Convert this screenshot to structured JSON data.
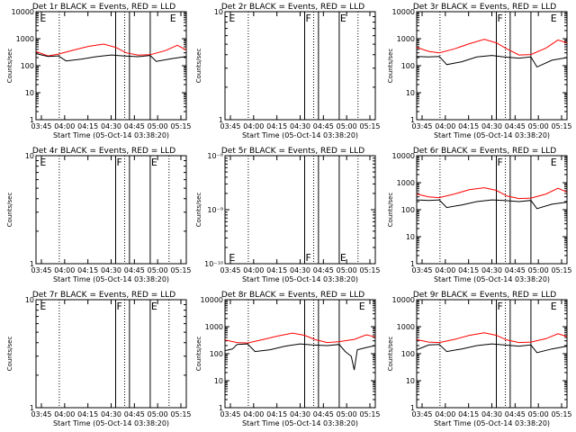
{
  "page": {
    "start_label_prefix": "Start Time",
    "start_time": "(05-Oct-14 03:38:20)",
    "x_ticks": [
      "03:45",
      "04:00",
      "04:15",
      "04:30",
      "04:45",
      "05:00",
      "05:15"
    ],
    "ylabel": "Counts/sec",
    "colors": {
      "events": "#000000",
      "lld": "#ff0000",
      "axes": "#000000"
    }
  },
  "chart_data": [
    {
      "type": "line",
      "title": "Det 1r BLACK = Events, RED = LLD",
      "scale": "log",
      "ylim": [
        1,
        10000
      ],
      "y_ticks": [
        "1",
        "10",
        "100",
        "1000",
        "10000"
      ],
      "markers": [
        {
          "x": 0.02,
          "label": "E"
        },
        {
          "x": 0.885,
          "label": "E"
        }
      ],
      "dotted_x": [
        0.155,
        0.59
      ],
      "solid_x": [
        0.53,
        0.622,
        0.76
      ],
      "has_data": true,
      "series": [
        {
          "color": "red",
          "points": [
            [
              0,
              330
            ],
            [
              0.08,
              230
            ],
            [
              0.15,
              270
            ],
            [
              0.25,
              380
            ],
            [
              0.35,
              520
            ],
            [
              0.45,
              630
            ],
            [
              0.53,
              480
            ],
            [
              0.6,
              300
            ],
            [
              0.68,
              245
            ],
            [
              0.76,
              255
            ],
            [
              0.86,
              360
            ],
            [
              0.94,
              570
            ],
            [
              1,
              380
            ]
          ]
        },
        {
          "color": "black",
          "points": [
            [
              0,
              280
            ],
            [
              0.08,
              220
            ],
            [
              0.15,
              230
            ],
            [
              0.2,
              150
            ],
            [
              0.3,
              175
            ],
            [
              0.4,
              215
            ],
            [
              0.5,
              250
            ],
            [
              0.58,
              230
            ],
            [
              0.68,
              215
            ],
            [
              0.76,
              240
            ],
            [
              0.8,
              145
            ],
            [
              0.9,
              180
            ],
            [
              1,
              220
            ]
          ]
        }
      ]
    },
    {
      "type": "line",
      "title": "Det 2r BLACK = Events, RED = LLD",
      "scale": "log",
      "ylim": [
        1,
        10
      ],
      "y_ticks": [
        "1",
        "10"
      ],
      "markers": [
        {
          "x": 0.02,
          "label": "E"
        },
        {
          "x": 0.53,
          "label": "F"
        },
        {
          "x": 0.76,
          "label": "E"
        }
      ],
      "dotted_x": [
        0.155,
        0.59,
        0.885
      ],
      "solid_x": [
        0.53,
        0.622,
        0.76
      ],
      "has_data": false,
      "series": []
    },
    {
      "type": "line",
      "title": "Det 3r BLACK = Events, RED = LLD",
      "scale": "log",
      "ylim": [
        1,
        10000
      ],
      "y_ticks": [
        "1",
        "10",
        "100",
        "1000",
        "10000"
      ],
      "markers": [
        {
          "x": 0.53,
          "label": "F"
        },
        {
          "x": 0.885,
          "label": "E"
        }
      ],
      "dotted_x": [
        0.155,
        0.59
      ],
      "solid_x": [
        0.53,
        0.622,
        0.76
      ],
      "has_data": true,
      "series": [
        {
          "color": "red",
          "points": [
            [
              0,
              480
            ],
            [
              0.08,
              340
            ],
            [
              0.15,
              300
            ],
            [
              0.25,
              420
            ],
            [
              0.35,
              650
            ],
            [
              0.45,
              950
            ],
            [
              0.53,
              700
            ],
            [
              0.6,
              420
            ],
            [
              0.68,
              250
            ],
            [
              0.76,
              260
            ],
            [
              0.86,
              450
            ],
            [
              0.94,
              900
            ],
            [
              1,
              700
            ]
          ]
        },
        {
          "color": "black",
          "points": [
            [
              0,
              220
            ],
            [
              0.08,
              210
            ],
            [
              0.15,
              220
            ],
            [
              0.2,
              110
            ],
            [
              0.3,
              140
            ],
            [
              0.4,
              210
            ],
            [
              0.5,
              240
            ],
            [
              0.58,
              210
            ],
            [
              0.68,
              190
            ],
            [
              0.76,
              210
            ],
            [
              0.8,
              90
            ],
            [
              0.9,
              160
            ],
            [
              1,
              200
            ]
          ]
        }
      ]
    },
    {
      "type": "line",
      "title": "Det 4r BLACK = Events, RED = LLD",
      "scale": "log",
      "ylim": [
        1,
        10
      ],
      "y_ticks": [
        "1",
        "10"
      ],
      "markers": [
        {
          "x": 0.02,
          "label": "E"
        },
        {
          "x": 0.53,
          "label": "F"
        },
        {
          "x": 0.76,
          "label": "E"
        }
      ],
      "dotted_x": [
        0.155,
        0.59,
        0.885
      ],
      "solid_x": [
        0.53,
        0.622,
        0.76
      ],
      "has_data": false,
      "series": []
    },
    {
      "type": "line",
      "title": "Det 5r BLACK = Events, RED = LLD",
      "scale": "log",
      "ylim": [
        1e-10,
        1e-08
      ],
      "y_ticks": [
        "10⁻¹⁰",
        "10⁻⁹",
        "10⁻⁸"
      ],
      "markers": [
        {
          "x": 0.02,
          "label": "E"
        },
        {
          "x": 0.53,
          "label": "F"
        },
        {
          "x": 0.76,
          "label": "E"
        }
      ],
      "markers_bottom": true,
      "dotted_x": [
        0.155,
        0.59,
        0.885
      ],
      "solid_x": [
        0.53,
        0.622,
        0.76
      ],
      "has_data": false,
      "series": []
    },
    {
      "type": "line",
      "title": "Det 6r BLACK = Events, RED = LLD",
      "scale": "log",
      "ylim": [
        1,
        10000
      ],
      "y_ticks": [
        "1",
        "10",
        "100",
        "1000",
        "10000"
      ],
      "markers": [
        {
          "x": 0.53,
          "label": "F"
        },
        {
          "x": 0.885,
          "label": "E"
        }
      ],
      "dotted_x": [
        0.155,
        0.59
      ],
      "solid_x": [
        0.53,
        0.622,
        0.76
      ],
      "has_data": true,
      "series": [
        {
          "color": "red",
          "points": [
            [
              0,
              380
            ],
            [
              0.08,
              300
            ],
            [
              0.15,
              280
            ],
            [
              0.25,
              380
            ],
            [
              0.35,
              550
            ],
            [
              0.45,
              650
            ],
            [
              0.53,
              520
            ],
            [
              0.6,
              320
            ],
            [
              0.68,
              260
            ],
            [
              0.76,
              270
            ],
            [
              0.86,
              380
            ],
            [
              0.94,
              620
            ],
            [
              1,
              450
            ]
          ]
        },
        {
          "color": "black",
          "points": [
            [
              0,
              230
            ],
            [
              0.08,
              220
            ],
            [
              0.15,
              230
            ],
            [
              0.2,
              120
            ],
            [
              0.3,
              150
            ],
            [
              0.4,
              200
            ],
            [
              0.5,
              230
            ],
            [
              0.58,
              220
            ],
            [
              0.68,
              200
            ],
            [
              0.76,
              220
            ],
            [
              0.8,
              110
            ],
            [
              0.9,
              160
            ],
            [
              1,
              190
            ]
          ]
        }
      ]
    },
    {
      "type": "line",
      "title": "Det 7r BLACK = Events, RED = LLD",
      "scale": "log",
      "ylim": [
        1,
        10
      ],
      "y_ticks": [
        "1",
        "10"
      ],
      "markers": [
        {
          "x": 0.02,
          "label": "E"
        },
        {
          "x": 0.53,
          "label": "F"
        },
        {
          "x": 0.76,
          "label": "E"
        }
      ],
      "dotted_x": [
        0.155,
        0.59,
        0.885
      ],
      "solid_x": [
        0.53,
        0.622,
        0.76
      ],
      "has_data": false,
      "series": []
    },
    {
      "type": "line",
      "title": "Det 8r BLACK = Events, RED = LLD",
      "scale": "log",
      "ylim": [
        1,
        10000
      ],
      "y_ticks": [
        "1",
        "10",
        "100",
        "1000",
        "10000"
      ],
      "markers": [
        {
          "x": 0.885,
          "label": "E"
        }
      ],
      "dotted_x": [
        0.155,
        0.59
      ],
      "solid_x": [
        0.53,
        0.622,
        0.76
      ],
      "has_data": true,
      "series": [
        {
          "color": "red",
          "points": [
            [
              0,
              320
            ],
            [
              0.08,
              260
            ],
            [
              0.15,
              250
            ],
            [
              0.25,
              330
            ],
            [
              0.35,
              450
            ],
            [
              0.45,
              580
            ],
            [
              0.53,
              480
            ],
            [
              0.6,
              330
            ],
            [
              0.68,
              260
            ],
            [
              0.76,
              280
            ],
            [
              0.86,
              340
            ],
            [
              0.94,
              500
            ],
            [
              1,
              420
            ]
          ]
        },
        {
          "color": "black",
          "points": [
            [
              0,
              130
            ],
            [
              0.05,
              150
            ],
            [
              0.08,
              220
            ],
            [
              0.15,
              230
            ],
            [
              0.2,
              120
            ],
            [
              0.3,
              140
            ],
            [
              0.4,
              190
            ],
            [
              0.5,
              230
            ],
            [
              0.58,
              210
            ],
            [
              0.68,
              200
            ],
            [
              0.76,
              220
            ],
            [
              0.8,
              120
            ],
            [
              0.84,
              80
            ],
            [
              0.86,
              25
            ],
            [
              0.88,
              140
            ],
            [
              0.94,
              170
            ],
            [
              1,
              200
            ]
          ]
        }
      ]
    },
    {
      "type": "line",
      "title": "Det 9r BLACK = Events, RED = LLD",
      "scale": "log",
      "ylim": [
        1,
        10000
      ],
      "y_ticks": [
        "1",
        "10",
        "100",
        "1000",
        "10000"
      ],
      "markers": [
        {
          "x": 0.53,
          "label": "F"
        },
        {
          "x": 0.885,
          "label": "E"
        }
      ],
      "dotted_x": [
        0.155,
        0.59
      ],
      "solid_x": [
        0.53,
        0.622,
        0.76
      ],
      "has_data": true,
      "series": [
        {
          "color": "red",
          "points": [
            [
              0,
              330
            ],
            [
              0.08,
              270
            ],
            [
              0.15,
              260
            ],
            [
              0.25,
              340
            ],
            [
              0.35,
              480
            ],
            [
              0.45,
              600
            ],
            [
              0.53,
              480
            ],
            [
              0.6,
              320
            ],
            [
              0.68,
              260
            ],
            [
              0.76,
              270
            ],
            [
              0.86,
              360
            ],
            [
              0.94,
              550
            ],
            [
              1,
              430
            ]
          ]
        },
        {
          "color": "black",
          "points": [
            [
              0,
              140
            ],
            [
              0.08,
              210
            ],
            [
              0.15,
              220
            ],
            [
              0.2,
              120
            ],
            [
              0.3,
              150
            ],
            [
              0.4,
              200
            ],
            [
              0.5,
              230
            ],
            [
              0.58,
              210
            ],
            [
              0.68,
              190
            ],
            [
              0.76,
              210
            ],
            [
              0.8,
              110
            ],
            [
              0.9,
              150
            ],
            [
              1,
              190
            ]
          ]
        }
      ]
    }
  ]
}
